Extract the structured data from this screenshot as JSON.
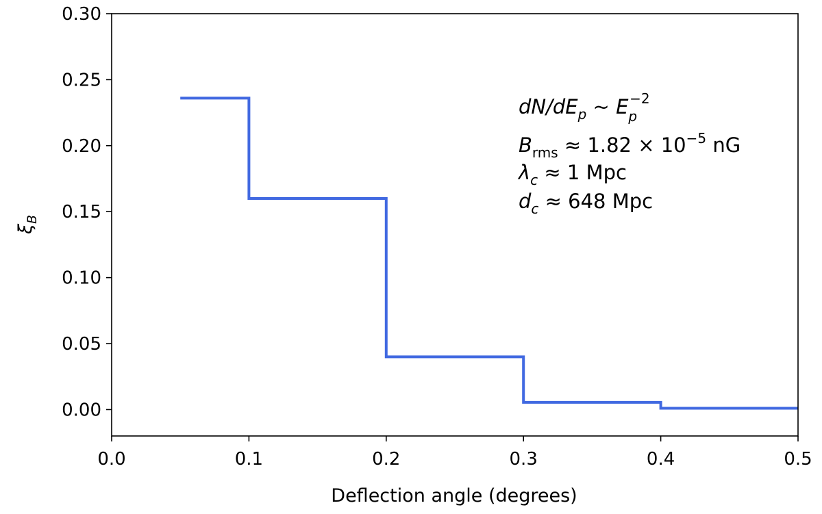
{
  "chart_data": {
    "type": "line",
    "drawstyle": "steps-post",
    "title": "",
    "xlabel": "Deflection angle (degrees)",
    "ylabel": {
      "base": "ξ",
      "sub": "B"
    },
    "xlim": [
      0.0,
      0.5
    ],
    "ylim": [
      -0.02,
      0.3
    ],
    "grid": false,
    "xticks": [
      0.0,
      0.1,
      0.2,
      0.3,
      0.4,
      0.5
    ],
    "xtick_labels": [
      "0.0",
      "0.1",
      "0.2",
      "0.3",
      "0.4",
      "0.5"
    ],
    "yticks": [
      0.0,
      0.05,
      0.1,
      0.15,
      0.2,
      0.25,
      0.3
    ],
    "ytick_labels": [
      "0.00",
      "0.05",
      "0.10",
      "0.15",
      "0.20",
      "0.25",
      "0.30"
    ],
    "series": [
      {
        "name": "xi_B",
        "color": "#4169e1",
        "x": [
          0.05,
          0.1,
          0.2,
          0.3,
          0.4,
          0.5
        ],
        "values": [
          0.236,
          0.16,
          0.04,
          0.0055,
          0.001,
          0.001
        ]
      }
    ],
    "annotations": {
      "spectrum": {
        "lhs": "dN/dE",
        "lhs_sub": "p",
        "sim": " ~ ",
        "rhs": "E",
        "rhs_sub": "p",
        "rhs_sup": "−2"
      },
      "brms": {
        "sym": "B",
        "sub": "rms",
        "rel": " ≈ 1.82 × 10",
        "sup": "−5",
        "unit": " nG"
      },
      "lambda": {
        "sym": "λ",
        "sub": "c",
        "rest": " ≈  1 Mpc"
      },
      "dc": {
        "sym": "d",
        "sub": "c",
        "rest": " ≈  648 Mpc"
      }
    }
  }
}
